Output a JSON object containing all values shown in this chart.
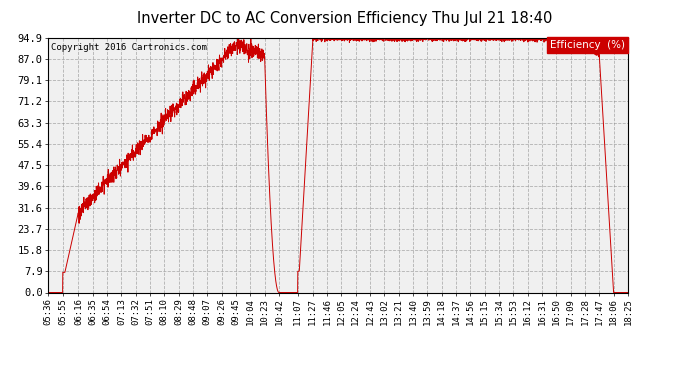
{
  "title": "Inverter DC to AC Conversion Efficiency Thu Jul 21 18:40",
  "copyright": "Copyright 2016 Cartronics.com",
  "legend_label": "Efficiency  (%)",
  "line_color": "#cc0000",
  "background_color": "#ffffff",
  "plot_bg_color": "#f0f0f0",
  "grid_color": "#888888",
  "legend_bg": "#cc0000",
  "legend_text_color": "#ffffff",
  "yticks": [
    0.0,
    7.9,
    15.8,
    23.7,
    31.6,
    39.6,
    47.5,
    55.4,
    63.3,
    71.2,
    79.1,
    87.0,
    94.9
  ],
  "ylim": [
    0.0,
    94.9
  ],
  "xtick_labels": [
    "05:36",
    "05:55",
    "06:16",
    "06:35",
    "06:54",
    "07:13",
    "07:32",
    "07:51",
    "08:10",
    "08:29",
    "08:48",
    "09:07",
    "09:26",
    "09:45",
    "10:04",
    "10:23",
    "10:42",
    "11:07",
    "11:27",
    "11:46",
    "12:05",
    "12:24",
    "12:43",
    "13:02",
    "13:21",
    "13:40",
    "13:59",
    "14:18",
    "14:37",
    "14:56",
    "15:15",
    "15:34",
    "15:53",
    "16:12",
    "16:31",
    "16:50",
    "17:09",
    "17:28",
    "17:47",
    "18:06",
    "18:25"
  ]
}
